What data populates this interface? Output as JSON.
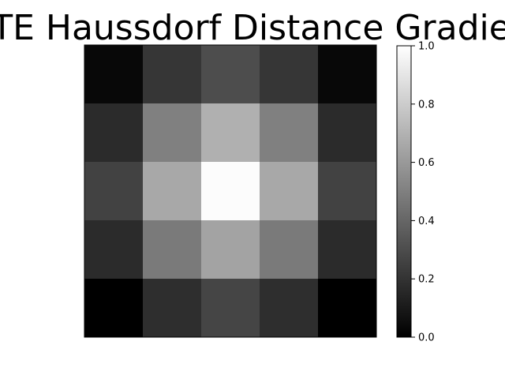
{
  "chart_data": {
    "type": "heatmap",
    "title": "TE Haussdorf Distance Gradie",
    "colormap": "gray",
    "axes_visible": false,
    "grid": false,
    "rows": 5,
    "cols": 5,
    "values": [
      [
        0.03,
        0.21,
        0.3,
        0.21,
        0.03
      ],
      [
        0.17,
        0.5,
        0.69,
        0.5,
        0.17
      ],
      [
        0.26,
        0.66,
        0.99,
        0.66,
        0.26
      ],
      [
        0.17,
        0.48,
        0.64,
        0.48,
        0.17
      ],
      [
        0.0,
        0.18,
        0.27,
        0.18,
        0.0
      ]
    ],
    "colorbar": {
      "range": [
        0.0,
        1.0
      ],
      "ticks": [
        0.0,
        0.2,
        0.4,
        0.6,
        0.8,
        1.0
      ],
      "tick_labels": [
        "0.0",
        "0.2",
        "0.4",
        "0.6",
        "0.8",
        "1.0"
      ]
    }
  }
}
